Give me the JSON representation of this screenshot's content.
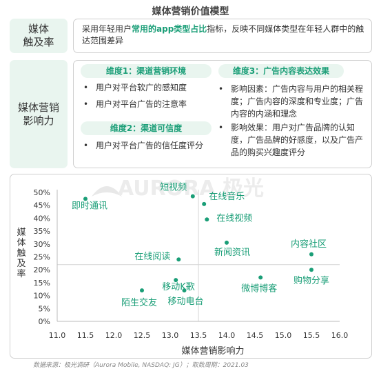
{
  "title": "媒体营销价值模型",
  "reach": {
    "label": "媒体\n触及率",
    "desc_prefix": "采用年轻用户",
    "desc_highlight": "常用的app类型占比",
    "desc_suffix": "指标，反映不同媒体类型在年轻人群中的触达范围差异"
  },
  "impact": {
    "label": "媒体营销\n影响力",
    "dimensions": [
      {
        "title": "维度1：渠道营销环境",
        "items": [
          "用户对平台软广的感知度",
          "用户对平台广告的注意率"
        ]
      },
      {
        "title": "维度2：渠道可信度",
        "items": [
          "用户对平台广告的信任度评分"
        ]
      },
      {
        "title": "维度3：广告内容表达效果",
        "items": [
          "影响因素：广告内容与用户的相关程度；广告内容的深度和专业度；广告内容的内涵和理念",
          "影响效果：用户对广告品牌的认知度，广告品牌的好感度，以及广告产品的购买兴趣度评分"
        ]
      }
    ]
  },
  "watermark": "AURORA 极光",
  "chart_data": {
    "type": "scatter",
    "xlabel": "媒体营销影响力",
    "ylabel": "媒体触及率",
    "xlim": [
      11.0,
      16.0
    ],
    "ylim": [
      0,
      50
    ],
    "xticks": [
      "11.0",
      "11.5",
      "12.0",
      "12.5",
      "13.0",
      "13.5",
      "14.0",
      "14.5",
      "15.0",
      "15.5",
      "16.0"
    ],
    "yticks": [
      "0%",
      "5%",
      "10%",
      "15%",
      "20%",
      "25%",
      "30%",
      "35%",
      "40%",
      "45%",
      "50%"
    ],
    "reference_lines": {
      "x": 13.5,
      "y": 22
    },
    "point_color": "#1a9e77",
    "points": [
      {
        "name": "即时通讯",
        "x": 11.5,
        "y": 47.5
      },
      {
        "name": "短视频",
        "x": 13.4,
        "y": 48.5
      },
      {
        "name": "在线音乐",
        "x": 13.6,
        "y": 45.5
      },
      {
        "name": "在线视频",
        "x": 13.65,
        "y": 39.5
      },
      {
        "name": "新闻资讯",
        "x": 14.0,
        "y": 30.5
      },
      {
        "name": "内容社区",
        "x": 15.5,
        "y": 26.0
      },
      {
        "name": "在线阅读",
        "x": 13.15,
        "y": 24.0
      },
      {
        "name": "购物分享",
        "x": 15.5,
        "y": 20.0
      },
      {
        "name": "移动K歌",
        "x": 13.1,
        "y": 16.0
      },
      {
        "name": "微博博客",
        "x": 14.6,
        "y": 17.0
      },
      {
        "name": "陌生交友",
        "x": 12.5,
        "y": 12.0
      },
      {
        "name": "移动电台",
        "x": 13.25,
        "y": 12.0
      }
    ]
  },
  "footer": "数据来源：极光调研（Aurora Mobile, NASDAQ: JG）；取数周期：2021.03"
}
